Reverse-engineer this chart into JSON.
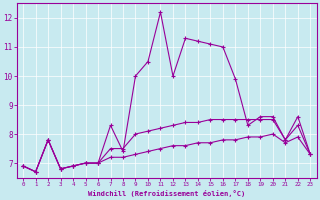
{
  "xlabel": "Windchill (Refroidissement éolien,°C)",
  "ylabel": "",
  "bg_color": "#c8eaf0",
  "line_color": "#990099",
  "grid_color": "#ffffff",
  "xlim": [
    -0.5,
    23.5
  ],
  "ylim": [
    6.5,
    12.5
  ],
  "yticks": [
    7,
    8,
    9,
    10,
    11,
    12
  ],
  "xticks": [
    0,
    1,
    2,
    3,
    4,
    5,
    6,
    7,
    8,
    9,
    10,
    11,
    12,
    13,
    14,
    15,
    16,
    17,
    18,
    19,
    20,
    21,
    22,
    23
  ],
  "series": [
    {
      "x": [
        0,
        1,
        2,
        3,
        4,
        5,
        6,
        7,
        8,
        9,
        10,
        11,
        12,
        13,
        14,
        15,
        16,
        17,
        18,
        19,
        20,
        21,
        22,
        23
      ],
      "y": [
        6.9,
        6.7,
        7.8,
        6.8,
        6.9,
        7.0,
        7.0,
        8.3,
        7.4,
        10.0,
        10.5,
        12.2,
        10.0,
        11.3,
        11.2,
        11.1,
        11.0,
        9.9,
        8.3,
        8.6,
        8.6,
        7.8,
        8.6,
        7.3
      ]
    },
    {
      "x": [
        0,
        1,
        2,
        3,
        4,
        5,
        6,
        7,
        8,
        9,
        10,
        11,
        12,
        13,
        14,
        15,
        16,
        17,
        18,
        19,
        20,
        21,
        22,
        23
      ],
      "y": [
        6.9,
        6.7,
        7.8,
        6.8,
        6.9,
        7.0,
        7.0,
        7.5,
        7.5,
        8.0,
        8.1,
        8.2,
        8.3,
        8.4,
        8.4,
        8.5,
        8.5,
        8.5,
        8.5,
        8.5,
        8.5,
        7.8,
        8.3,
        7.3
      ]
    },
    {
      "x": [
        0,
        1,
        2,
        3,
        4,
        5,
        6,
        7,
        8,
        9,
        10,
        11,
        12,
        13,
        14,
        15,
        16,
        17,
        18,
        19,
        20,
        21,
        22,
        23
      ],
      "y": [
        6.9,
        6.7,
        7.8,
        6.8,
        6.9,
        7.0,
        7.0,
        7.2,
        7.2,
        7.3,
        7.4,
        7.5,
        7.6,
        7.6,
        7.7,
        7.7,
        7.8,
        7.8,
        7.9,
        7.9,
        8.0,
        7.7,
        7.9,
        7.3
      ]
    }
  ]
}
